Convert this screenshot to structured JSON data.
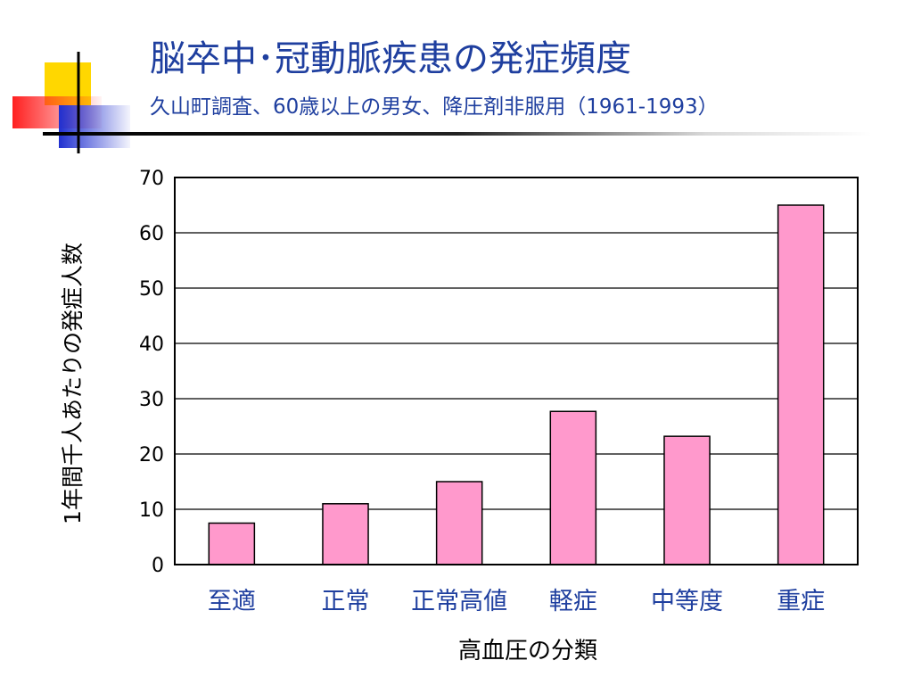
{
  "slide": {
    "title": "脳卒中･冠動脈疾患の発症頻度",
    "subtitle": "久山町調査、60歳以上の男女、降圧剤非服用（1961-1993）"
  },
  "colors": {
    "title": "#1f3f9f",
    "bar_fill": "#ff99cc",
    "category_label": "#1f3f9f",
    "deco_yellow": "#ffd700",
    "deco_red": "#ff3b3b",
    "deco_blue": "#2d3fd6"
  },
  "chart_data": {
    "type": "bar",
    "categories": [
      "至適",
      "正常",
      "正常高値",
      "軽症",
      "中等度",
      "重症"
    ],
    "values": [
      7.5,
      11,
      15,
      27.7,
      23.2,
      65
    ],
    "xlabel": "高血圧の分類",
    "ylabel": "1年間千人あたりの発症人数",
    "ylim": [
      0,
      70
    ],
    "yticks": [
      0,
      10,
      20,
      30,
      40,
      50,
      60,
      70
    ],
    "grid": true,
    "legend": "none"
  }
}
